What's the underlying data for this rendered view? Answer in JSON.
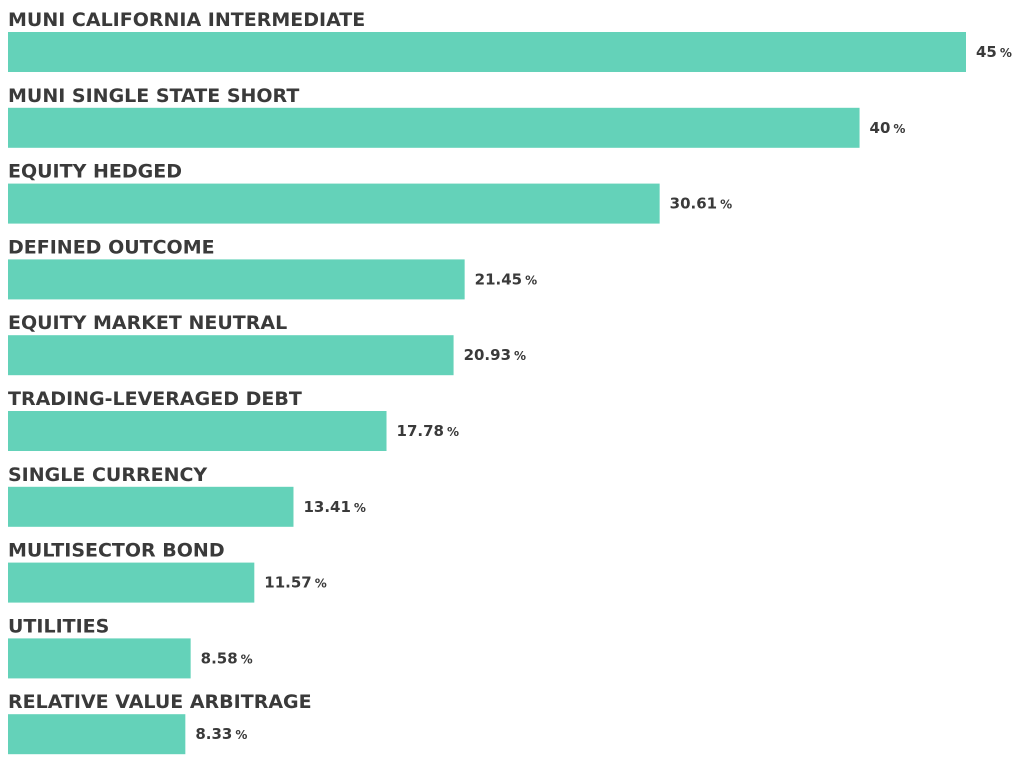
{
  "chart_data": {
    "type": "bar",
    "orientation": "horizontal",
    "categories": [
      "MUNI CALIFORNIA INTERMEDIATE",
      "MUNI SINGLE STATE SHORT",
      "EQUITY HEDGED",
      "DEFINED OUTCOME",
      "EQUITY MARKET NEUTRAL",
      "TRADING-LEVERAGED DEBT",
      "SINGLE CURRENCY",
      "MULTISECTOR BOND",
      "UTILITIES",
      "RELATIVE VALUE ARBITRAGE"
    ],
    "values": [
      45,
      40,
      30.61,
      21.45,
      20.93,
      17.78,
      13.41,
      11.57,
      8.58,
      8.33
    ],
    "value_labels": [
      "45",
      "40",
      "30.61",
      "21.45",
      "20.93",
      "17.78",
      "13.41",
      "11.57",
      "8.58",
      "8.33"
    ],
    "unit": "%",
    "xlim": [
      0,
      45
    ],
    "bar_color": "#64d2b9",
    "title": "",
    "xlabel": "",
    "ylabel": "",
    "grid": false,
    "legend": "none"
  }
}
